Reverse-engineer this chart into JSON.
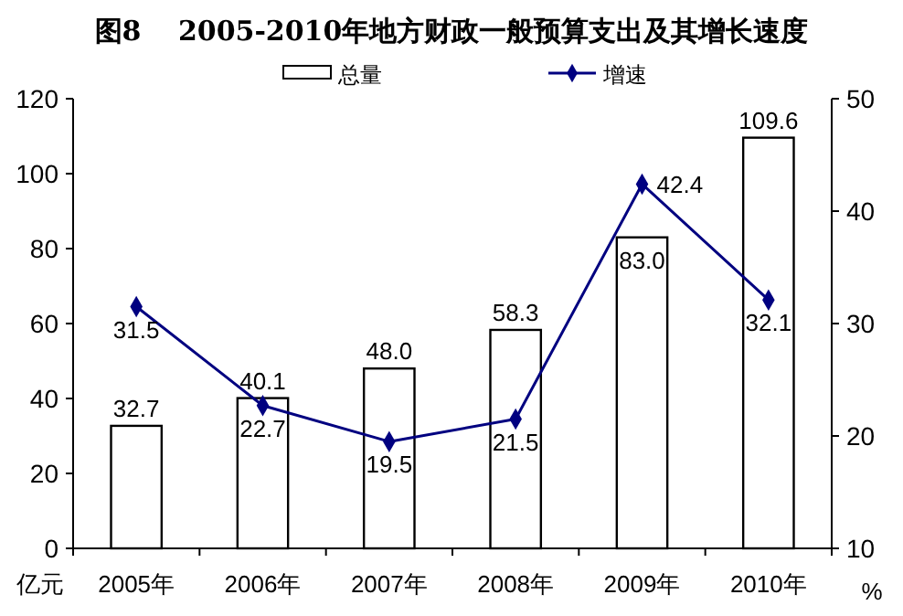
{
  "chart_data": {
    "type": "bar",
    "title": "图8　 2005-2010年地方财政一般预算支出及其增长速度",
    "ylabel": "亿元",
    "y2label": "%",
    "categories": [
      "2005年",
      "2006年",
      "2007年",
      "2008年",
      "2009年",
      "2010年"
    ],
    "series": [
      {
        "name": "总量",
        "color": "#ffffff",
        "values": [
          32.7,
          40.1,
          48,
          58.3,
          83,
          109.6
        ],
        "value_labels": [
          "32.7",
          "40.1",
          "48.0",
          "58.3",
          "83.0",
          "109.6"
        ]
      },
      {
        "name": "增速",
        "type": "line",
        "axis": "y2",
        "color": "#000080",
        "marker": "diamond",
        "values": [
          31.5,
          22.7,
          19.5,
          21.5,
          42.4,
          32.1
        ],
        "value_labels": [
          "31.5",
          "22.7",
          "19.5",
          "21.5",
          "42.4",
          "32.1"
        ]
      }
    ],
    "ylim": [
      0,
      120
    ],
    "yticks": [
      0,
      20,
      40,
      60,
      80,
      100,
      120
    ],
    "y2lim": [
      10,
      50
    ],
    "y2ticks": [
      10,
      20,
      30,
      40,
      50
    ],
    "legend": "top"
  }
}
